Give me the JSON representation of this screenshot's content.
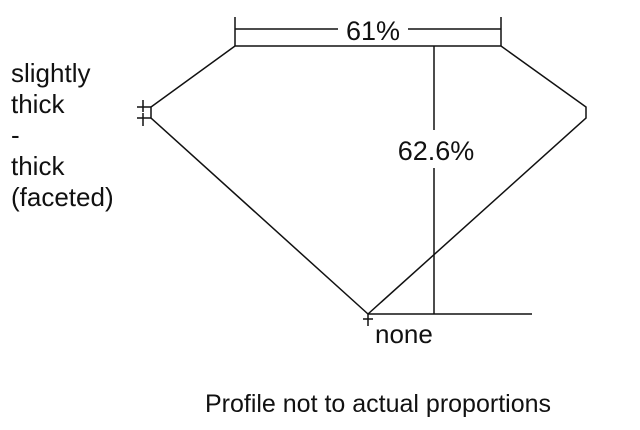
{
  "girdle_label": [
    "slightly",
    "thick",
    "-",
    "thick",
    "(faceted)"
  ],
  "table_label": "61%",
  "depth_label": "62.6%",
  "culet_label": "none",
  "caption": "Profile not to actual proportions",
  "colors": {
    "line": "#111111",
    "background": "#ffffff"
  }
}
